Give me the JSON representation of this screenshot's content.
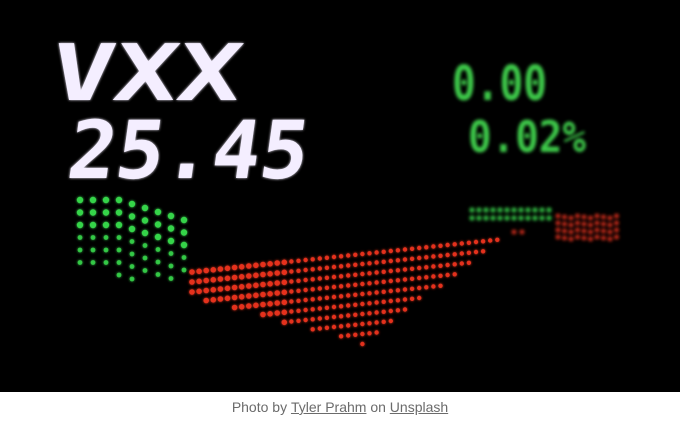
{
  "photo": {
    "ticker": "VXX",
    "price": "25.45",
    "change": "0.00",
    "change_percent": "0.02%",
    "colors": {
      "ticker_dots": "#f2ecff",
      "change_dots": "#3cc84a",
      "chart_up": "#36d44a",
      "chart_down": "#e8321e",
      "background": "#000000"
    }
  },
  "caption": {
    "prefix": "Photo by",
    "author": "Tyler Prahm",
    "middle": "on",
    "site": "Unsplash"
  }
}
